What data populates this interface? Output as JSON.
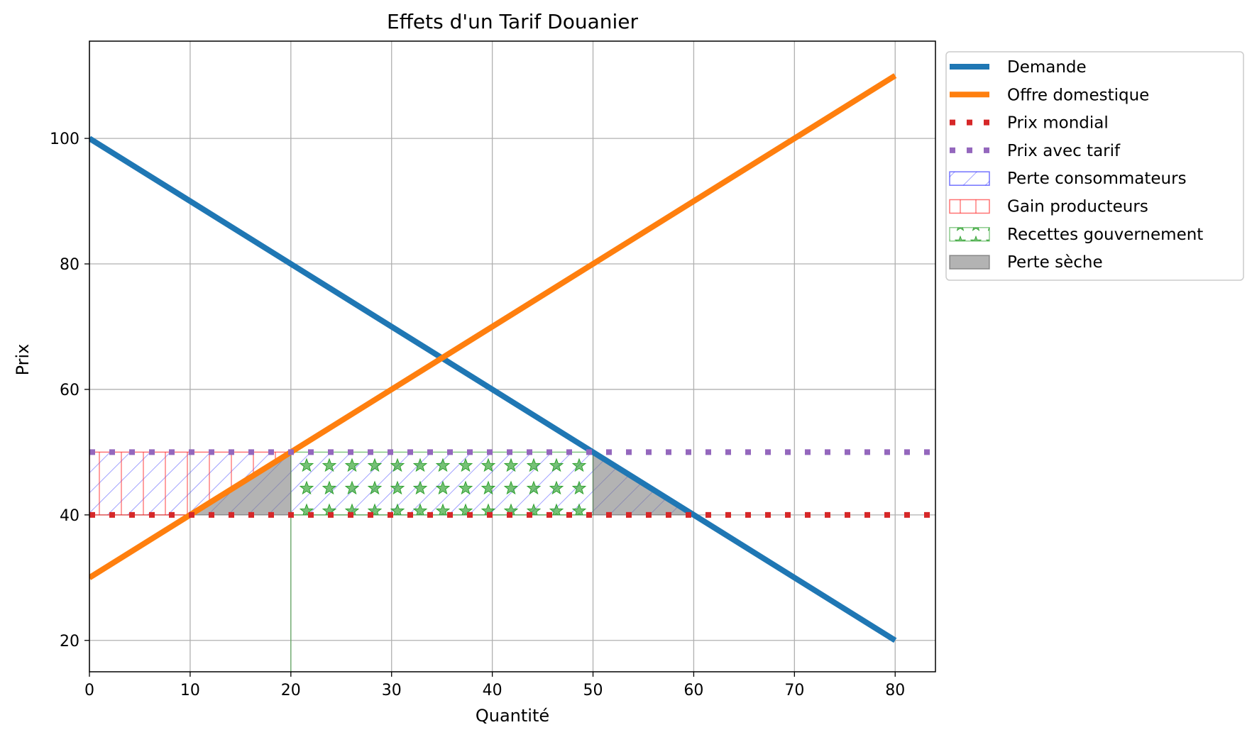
{
  "chart_data": {
    "type": "line",
    "title": "Effets d'un Tarif Douanier",
    "xlabel": "Quantité",
    "ylabel": "Prix",
    "xlim": [
      0,
      84
    ],
    "ylim": [
      15,
      115.5
    ],
    "xticks": [
      0,
      10,
      20,
      30,
      40,
      50,
      60,
      70,
      80
    ],
    "yticks": [
      20,
      40,
      60,
      80,
      100
    ],
    "grid": true,
    "legend_position": "outside top-right",
    "series": [
      {
        "name": "Demande",
        "kind": "line",
        "color": "#1f77b4",
        "style": "solid",
        "x": [
          0,
          80
        ],
        "y": [
          100,
          20
        ]
      },
      {
        "name": "Offre domestique",
        "kind": "line",
        "color": "#ff7f0e",
        "style": "solid",
        "x": [
          0,
          80
        ],
        "y": [
          30,
          110
        ]
      },
      {
        "name": "Prix mondial",
        "kind": "hline",
        "color": "#d62728",
        "style": "dotted",
        "y": 40
      },
      {
        "name": "Prix avec tarif",
        "kind": "hline",
        "color": "#9467bd",
        "style": "dotted",
        "y": 50
      }
    ],
    "areas": [
      {
        "name": "Perte consommateurs",
        "color": "#0000ff",
        "hatch": "diagonal",
        "polygon": [
          [
            0,
            40
          ],
          [
            60,
            40
          ],
          [
            50,
            50
          ],
          [
            0,
            50
          ]
        ]
      },
      {
        "name": "Gain producteurs",
        "color": "#ff0000",
        "hatch": "vertical",
        "polygon": [
          [
            0,
            40
          ],
          [
            10,
            40
          ],
          [
            20,
            50
          ],
          [
            0,
            50
          ]
        ]
      },
      {
        "name": "Recettes gouvernement",
        "color": "#2ca02c",
        "hatch": "stars",
        "rect": {
          "x": [
            20,
            50
          ],
          "y": [
            40,
            50
          ]
        }
      },
      {
        "name": "Perte sèche",
        "color": "#808080",
        "hatch": "none",
        "polygons": [
          [
            [
              10,
              40
            ],
            [
              20,
              40
            ],
            [
              20,
              50
            ]
          ],
          [
            [
              50,
              40
            ],
            [
              60,
              40
            ],
            [
              50,
              50
            ]
          ]
        ]
      }
    ]
  }
}
